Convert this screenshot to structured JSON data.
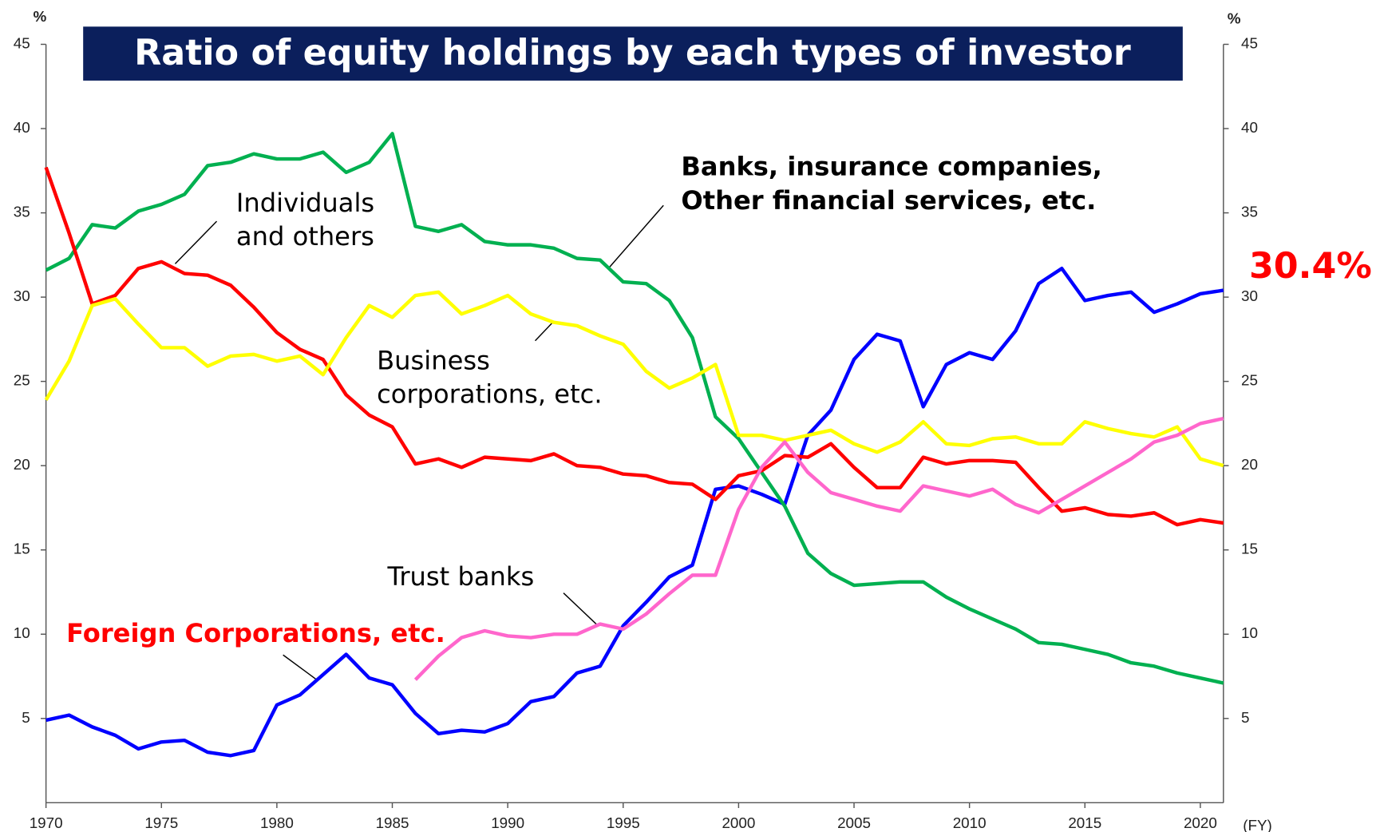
{
  "chart_data": {
    "type": "line",
    "title": "Ratio of equity holdings by each types of investor",
    "y_unit": "%",
    "y2_unit": "%",
    "x_unit": "(FY)",
    "annotation": "30.4%",
    "x": [
      1970,
      1971,
      1972,
      1973,
      1974,
      1975,
      1976,
      1977,
      1978,
      1979,
      1980,
      1981,
      1982,
      1983,
      1984,
      1985,
      1986,
      1987,
      1988,
      1989,
      1990,
      1991,
      1992,
      1993,
      1994,
      1995,
      1996,
      1997,
      1998,
      1999,
      2000,
      2001,
      2002,
      2003,
      2004,
      2005,
      2006,
      2007,
      2008,
      2009,
      2010,
      2011,
      2012,
      2013,
      2014,
      2015,
      2016,
      2017,
      2018,
      2019,
      2020,
      2021
    ],
    "xlim": [
      1970,
      2021
    ],
    "xticks": [
      1970,
      1975,
      1980,
      1985,
      1990,
      1995,
      2000,
      2005,
      2010,
      2015,
      2020
    ],
    "ylim": [
      0,
      45
    ],
    "yticks": [
      5,
      10,
      15,
      20,
      25,
      30,
      35,
      40,
      45
    ],
    "y2lim": [
      0,
      45
    ],
    "y2ticks": [
      5,
      10,
      15,
      20,
      25,
      30,
      35,
      40,
      45
    ],
    "grid": false,
    "series": [
      {
        "name": "Foreign Corporations, etc.",
        "color": "#0000ff",
        "values": [
          4.9,
          5.2,
          4.5,
          4.0,
          3.2,
          3.6,
          3.7,
          3.0,
          2.8,
          3.1,
          5.8,
          6.4,
          7.6,
          8.8,
          7.4,
          7.0,
          5.3,
          4.1,
          4.3,
          4.2,
          4.7,
          6.0,
          6.3,
          7.7,
          8.1,
          10.5,
          11.9,
          13.4,
          14.1,
          18.6,
          18.8,
          18.3,
          17.7,
          21.8,
          23.3,
          26.3,
          27.8,
          27.4,
          23.5,
          26.0,
          26.7,
          26.3,
          28.0,
          30.8,
          31.7,
          29.8,
          30.1,
          30.3,
          29.1,
          29.6,
          30.2,
          30.4
        ]
      },
      {
        "name": "Banks, insurance companies,\nOther financial services, etc.",
        "color": "#00b050",
        "values": [
          31.6,
          32.3,
          34.3,
          34.1,
          35.1,
          35.5,
          36.1,
          37.8,
          38.0,
          38.5,
          38.2,
          38.2,
          38.6,
          37.4,
          38.0,
          39.7,
          34.2,
          33.9,
          34.3,
          33.3,
          33.1,
          33.1,
          32.9,
          32.3,
          32.2,
          30.9,
          30.8,
          29.8,
          27.6,
          22.9,
          21.6,
          19.6,
          17.6,
          14.8,
          13.6,
          12.9,
          13.0,
          13.1,
          13.1,
          12.2,
          11.5,
          10.9,
          10.3,
          9.5,
          9.4,
          9.1,
          8.8,
          8.3,
          8.1,
          7.7,
          7.4,
          7.1
        ]
      },
      {
        "name": "Individuals\nand others",
        "color": "#ff0000",
        "values": [
          37.7,
          33.8,
          29.6,
          30.1,
          31.7,
          32.1,
          31.4,
          31.3,
          30.7,
          29.4,
          27.9,
          26.9,
          26.3,
          24.2,
          23.0,
          22.3,
          20.1,
          20.4,
          19.9,
          20.5,
          20.4,
          20.3,
          20.7,
          20.0,
          19.9,
          19.5,
          19.4,
          19.0,
          18.9,
          18.0,
          19.4,
          19.7,
          20.6,
          20.5,
          21.3,
          19.9,
          18.7,
          18.7,
          20.5,
          20.1,
          20.3,
          20.3,
          20.2,
          18.7,
          17.3,
          17.5,
          17.1,
          17.0,
          17.2,
          16.5,
          16.8,
          16.6
        ]
      },
      {
        "name": "Business\ncorporations, etc.",
        "color": "#ffff00",
        "values": [
          23.9,
          26.2,
          29.5,
          29.9,
          28.4,
          27.0,
          27.0,
          25.9,
          26.5,
          26.6,
          26.2,
          26.5,
          25.4,
          27.6,
          29.5,
          28.8,
          30.1,
          30.3,
          29.0,
          29.5,
          30.1,
          29.0,
          28.5,
          28.3,
          27.7,
          27.2,
          25.6,
          24.6,
          25.2,
          26.0,
          21.8,
          21.8,
          21.5,
          21.8,
          22.1,
          21.3,
          20.8,
          21.4,
          22.6,
          21.3,
          21.2,
          21.6,
          21.7,
          21.3,
          21.3,
          22.6,
          22.2,
          21.9,
          21.7,
          22.3,
          20.4,
          20.0
        ]
      },
      {
        "name": "Trust banks",
        "color": "#ff66cc",
        "values": [
          null,
          null,
          null,
          null,
          null,
          null,
          null,
          null,
          null,
          null,
          null,
          null,
          null,
          null,
          null,
          null,
          7.3,
          8.7,
          9.8,
          10.2,
          9.9,
          9.8,
          10.0,
          10.0,
          10.6,
          10.3,
          11.2,
          12.4,
          13.5,
          13.5,
          17.4,
          19.9,
          21.4,
          19.6,
          18.4,
          18.0,
          17.6,
          17.3,
          18.8,
          18.5,
          18.2,
          18.6,
          17.7,
          17.2,
          18.0,
          18.8,
          19.6,
          20.4,
          21.4,
          21.8,
          22.5,
          22.8
        ]
      }
    ]
  }
}
